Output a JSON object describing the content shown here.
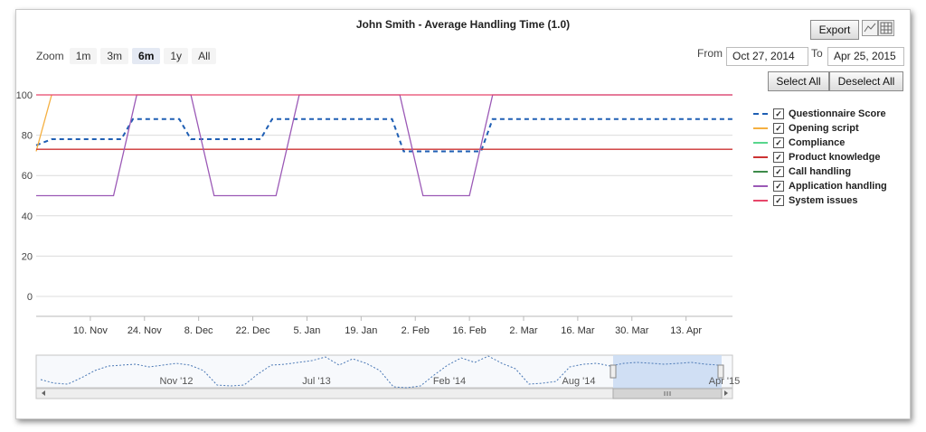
{
  "title": "John Smith - Average Handling Time (1.0)",
  "toolbar": {
    "export_label": "Export",
    "select_all_label": "Select All",
    "deselect_all_label": "Deselect All"
  },
  "zoom": {
    "label": "Zoom",
    "buttons": [
      "1m",
      "3m",
      "6m",
      "1y",
      "All"
    ],
    "active": "6m"
  },
  "range": {
    "from_label": "From",
    "from_value": "Oct 27, 2014",
    "to_label": "To",
    "to_value": "Apr 25, 2015"
  },
  "navigator": {
    "labels": [
      "Nov '12",
      "Jul '13",
      "Feb '14",
      "Aug '14",
      "Apr '15"
    ]
  },
  "chart_data": {
    "type": "line",
    "title": "John Smith - Average Handling Time (1.0)",
    "ylim": [
      -10,
      100
    ],
    "y_ticks": [
      0,
      20,
      40,
      60,
      80,
      100
    ],
    "x_tick_labels": [
      "10. Nov",
      "24. Nov",
      "8. Dec",
      "22. Dec",
      "5. Jan",
      "19. Jan",
      "2. Feb",
      "16. Feb",
      "2. Mar",
      "16. Mar",
      "30. Mar",
      "13. Apr"
    ],
    "x_day_range": [
      0,
      180
    ],
    "grid": true,
    "legend_position": "right",
    "series": [
      {
        "name": "Questionnaire Score",
        "color": "#1f5fb4",
        "dash": true,
        "points": [
          [
            0,
            75
          ],
          [
            4,
            78
          ],
          [
            22,
            78
          ],
          [
            25,
            88
          ],
          [
            37,
            88
          ],
          [
            40,
            78
          ],
          [
            58,
            78
          ],
          [
            61,
            88
          ],
          [
            92,
            88
          ],
          [
            95,
            72
          ],
          [
            115,
            72
          ],
          [
            118,
            88
          ],
          [
            180,
            88
          ]
        ]
      },
      {
        "name": "Opening script",
        "color": "#f5b041",
        "dash": false,
        "points": [
          [
            0,
            72
          ],
          [
            4,
            100
          ]
        ]
      },
      {
        "name": "Compliance",
        "color": "#58d68d",
        "dash": false,
        "points": []
      },
      {
        "name": "Product knowledge",
        "color": "#cc3333",
        "dash": false,
        "points": [
          [
            0,
            73
          ],
          [
            180,
            73
          ]
        ]
      },
      {
        "name": "Call handling",
        "color": "#3d8b4a",
        "dash": false,
        "points": []
      },
      {
        "name": "Application handling",
        "color": "#9b59b6",
        "dash": false,
        "points": [
          [
            0,
            50
          ],
          [
            20,
            50
          ],
          [
            26,
            100
          ],
          [
            40,
            100
          ],
          [
            46,
            50
          ],
          [
            62,
            50
          ],
          [
            68,
            100
          ],
          [
            94,
            100
          ],
          [
            100,
            50
          ],
          [
            112,
            50
          ],
          [
            118,
            100
          ],
          [
            180,
            100
          ]
        ]
      },
      {
        "name": "System issues",
        "color": "#e7466a",
        "dash": false,
        "points": [
          [
            0,
            100
          ],
          [
            180,
            100
          ]
        ]
      }
    ]
  }
}
